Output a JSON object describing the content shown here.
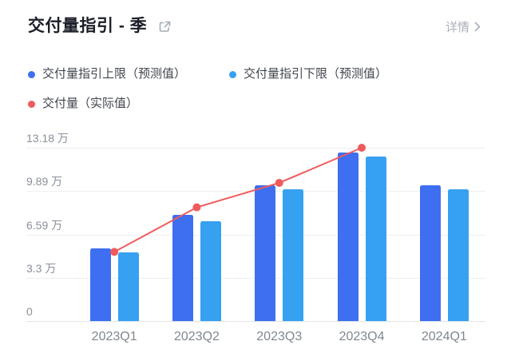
{
  "header": {
    "title": "交付量指引 - 季",
    "detail_label": "详情"
  },
  "icons": {
    "external_link": "external-link-icon",
    "chevron_right": "chevron-right-icon",
    "legend_dots": [
      "legend-dot-upper",
      "legend-dot-lower",
      "legend-dot-actual"
    ]
  },
  "legend": [
    {
      "label": "交付量指引上限（预测值）",
      "color": "#3d6ff0"
    },
    {
      "label": "交付量指引下限（预测值）",
      "color": "#36a1f0"
    },
    {
      "label": "交付量（实际值）",
      "color": "#f15b5c"
    }
  ],
  "chart_data": {
    "type": "bar",
    "subtype": "grouped-bars-with-line",
    "title": "交付量指引 - 季",
    "categories": [
      "2023Q1",
      "2023Q2",
      "2023Q3",
      "2023Q4",
      "2024Q1"
    ],
    "unit": "万",
    "series": [
      {
        "name": "交付量指引上限（预测值）",
        "type": "bar",
        "color": "#3d6ff0",
        "values": [
          5.5,
          8.1,
          10.3,
          12.8,
          10.3
        ]
      },
      {
        "name": "交付量指引下限（预测值）",
        "type": "bar",
        "color": "#36a1f0",
        "values": [
          5.2,
          7.6,
          10.0,
          12.5,
          10.0
        ]
      },
      {
        "name": "交付量（实际值）",
        "type": "line",
        "color": "#f15b5c",
        "values": [
          5.26,
          8.65,
          10.51,
          13.18,
          null
        ]
      }
    ],
    "y_ticks": [
      {
        "value": 0,
        "label": "0"
      },
      {
        "value": 3.3,
        "label": "3.3 万"
      },
      {
        "value": 6.59,
        "label": "6.59 万"
      },
      {
        "value": 9.89,
        "label": "9.89 万"
      },
      {
        "value": 13.18,
        "label": "13.18 万"
      }
    ],
    "xlabel": "",
    "ylabel": "",
    "ylim": [
      0,
      13.18
    ],
    "grid": true,
    "legend_position": "top"
  }
}
